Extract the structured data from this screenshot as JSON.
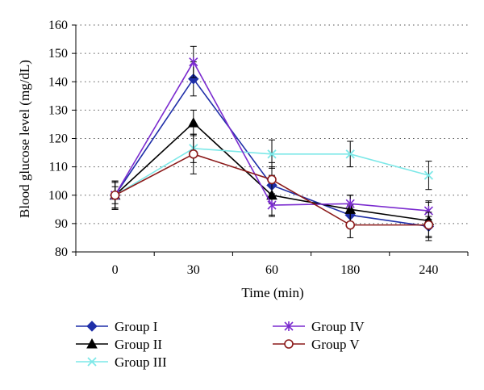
{
  "chart_data": {
    "type": "line",
    "title": "",
    "xlabel": "Time (min)",
    "ylabel": "Blood glucose level (mg/dL)",
    "categories": [
      "0",
      "30",
      "60",
      "180",
      "240"
    ],
    "ylim": [
      80,
      160
    ],
    "yticks": [
      80,
      90,
      100,
      110,
      120,
      130,
      140,
      150,
      160
    ],
    "grid": "horizontal dotted",
    "legend_position": "bottom",
    "series": [
      {
        "name": "Group I",
        "color": "#1f2fa8",
        "marker": "diamond",
        "values": [
          100,
          141,
          103.5,
          93,
          89
        ],
        "errors": [
          4.5,
          6,
          6.5,
          3.5,
          3.5
        ]
      },
      {
        "name": "Group II",
        "color": "#000000",
        "marker": "triangle",
        "values": [
          100,
          125.5,
          100,
          95,
          91
        ],
        "errors": [
          5,
          4.5,
          7,
          5,
          7
        ]
      },
      {
        "name": "Group III",
        "color": "#7de8e8",
        "marker": "x",
        "values": [
          100,
          116.5,
          114.5,
          114.5,
          107
        ],
        "errors": [
          3,
          5,
          5,
          4.5,
          5
        ]
      },
      {
        "name": "Group IV",
        "color": "#7b2bcf",
        "marker": "star",
        "values": [
          100,
          147,
          96.5,
          97,
          94.5
        ],
        "errors": [
          4.5,
          5.5,
          4,
          3,
          3
        ]
      },
      {
        "name": "Group V",
        "color": "#8b1a1a",
        "marker": "circle",
        "values": [
          100,
          114.5,
          105.5,
          89.5,
          89.5
        ],
        "errors": [
          5,
          7,
          6,
          4.5,
          4.5
        ]
      }
    ]
  }
}
